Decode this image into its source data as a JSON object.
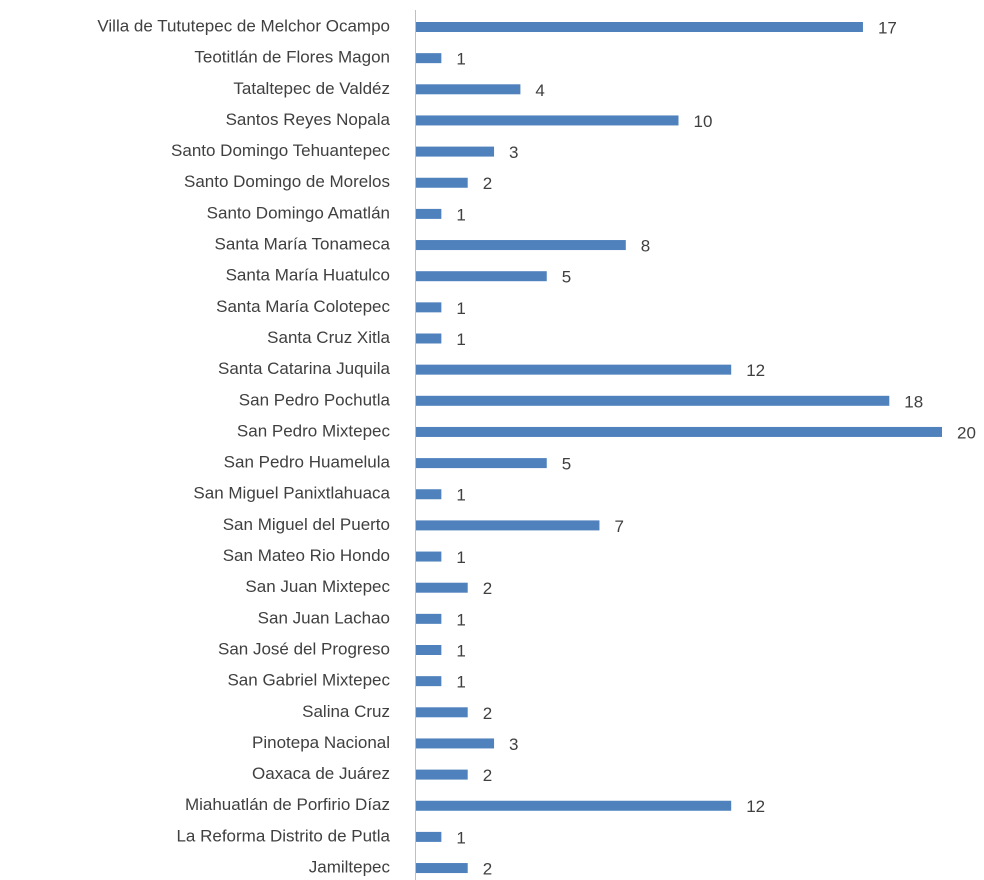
{
  "chart_data": {
    "type": "bar",
    "orientation": "horizontal",
    "color": "#4f81bd",
    "categories": [
      "Villa de Tututepec de Melchor Ocampo",
      "Teotitlán de Flores Magon",
      "Tataltepec de Valdéz",
      "Santos Reyes Nopala",
      "Santo Domingo Tehuantepec",
      "Santo Domingo de Morelos",
      "Santo Domingo Amatlán",
      "Santa María Tonameca",
      "Santa María Huatulco",
      "Santa María Colotepec",
      "Santa Cruz Xitla",
      "Santa Catarina Juquila",
      "San Pedro Pochutla",
      "San Pedro Mixtepec",
      "San Pedro Huamelula",
      "San Miguel Panixtlahuaca",
      "San Miguel del Puerto",
      "San Mateo Rio Hondo",
      "San Juan Mixtepec",
      "San Juan Lachao",
      "San José del Progreso",
      "San Gabriel Mixtepec",
      "Salina Cruz",
      "Pinotepa Nacional",
      "Oaxaca de Juárez",
      "Miahuatlán de Porfirio Díaz",
      "La Reforma Distrito de Putla",
      "Jamiltepec"
    ],
    "values": [
      17,
      1,
      4,
      10,
      3,
      2,
      1,
      8,
      5,
      1,
      1,
      12,
      18,
      20,
      5,
      1,
      7,
      1,
      2,
      1,
      1,
      1,
      2,
      3,
      2,
      12,
      1,
      2
    ]
  }
}
